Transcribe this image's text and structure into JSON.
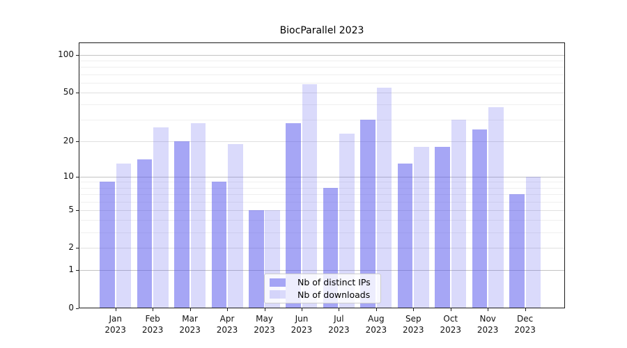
{
  "title": "BiocParallel 2023",
  "chart_data": {
    "type": "bar",
    "title": "BiocParallel 2023",
    "scale": "log10(value+1)",
    "grid": true,
    "legend_position": "bottom-center",
    "ylim": [
      0,
      126
    ],
    "yticks": [
      0,
      1,
      2,
      5,
      10,
      20,
      50,
      100
    ],
    "minor_yticks": [
      3,
      4,
      6,
      7,
      8,
      9,
      30,
      40,
      60,
      70,
      80,
      90
    ],
    "categories": [
      {
        "month": "Jan",
        "year": "2023"
      },
      {
        "month": "Feb",
        "year": "2023"
      },
      {
        "month": "Mar",
        "year": "2023"
      },
      {
        "month": "Apr",
        "year": "2023"
      },
      {
        "month": "May",
        "year": "2023"
      },
      {
        "month": "Jun",
        "year": "2023"
      },
      {
        "month": "Jul",
        "year": "2023"
      },
      {
        "month": "Aug",
        "year": "2023"
      },
      {
        "month": "Sep",
        "year": "2023"
      },
      {
        "month": "Oct",
        "year": "2023"
      },
      {
        "month": "Nov",
        "year": "2023"
      },
      {
        "month": "Dec",
        "year": "2023"
      }
    ],
    "series": [
      {
        "name": "Nb of distinct IPs",
        "color": "rgba(85,85,235,0.52)",
        "values": [
          9,
          14,
          20,
          9,
          5,
          28,
          8,
          30,
          13,
          18,
          25,
          7
        ]
      },
      {
        "name": "Nb of downloads",
        "color": "rgba(85,85,235,0.22)",
        "values": [
          13,
          26,
          28,
          19,
          5,
          58,
          23,
          55,
          18,
          30,
          38,
          10
        ]
      }
    ],
    "colors": {
      "axis": "#1a1a1a",
      "grid_decade": "#c3c3c3",
      "grid_major": "#e0e0e0",
      "grid_minor": "#efefef"
    }
  }
}
